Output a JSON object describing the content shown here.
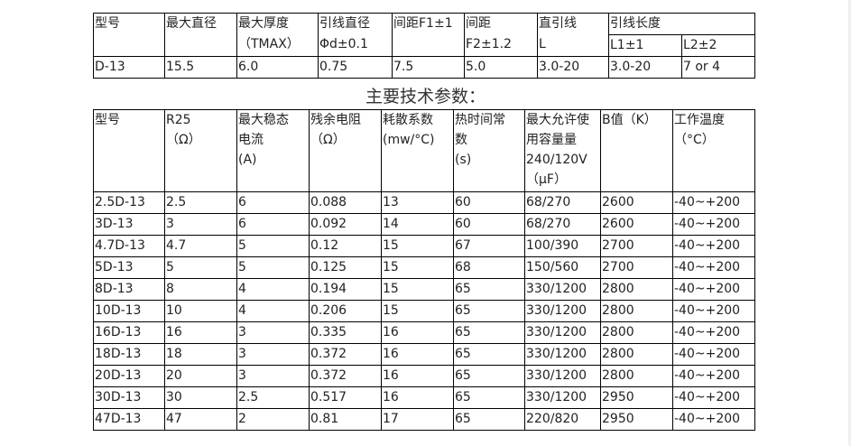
{
  "spec_table": {
    "headers": [
      "型号",
      "最大直径",
      "最大厚度",
      "引线直径",
      "间距F1±1",
      "间距",
      "直引线",
      "引线长度"
    ],
    "subheaders": [
      "",
      "",
      "（TMAX）",
      "Φd±0.1",
      "",
      "F2±1.2",
      "L",
      "L1±1",
      "L2±2"
    ],
    "row": [
      "D-13",
      "15.5",
      "6.0",
      "0.75",
      "7.5",
      "5.0",
      "3.0-20",
      "3.0-20",
      "7 or 4"
    ]
  },
  "section_title": "主要技术参数：",
  "param_table": {
    "headers": [
      [
        "型号"
      ],
      [
        "R25",
        "（Ω）"
      ],
      [
        "最大稳态",
        "电流",
        "(A)"
      ],
      [
        "残余电阻",
        "（Ω）"
      ],
      [
        "耗散系数",
        "(mw/°C)"
      ],
      [
        "热时间常",
        "数",
        "(s)"
      ],
      [
        "最大允许使",
        "用容量量",
        "240/120V",
        "（μF）"
      ],
      [
        "B值（K）"
      ],
      [
        "工作温度",
        "（°C）"
      ]
    ],
    "rows": [
      [
        "2.5D-13",
        "2.5",
        "6",
        "0.088",
        "13",
        "60",
        "68/270",
        "2600",
        "-40~+200"
      ],
      [
        "3D-13",
        "3",
        "6",
        "0.092",
        "14",
        "60",
        "68/270",
        "2600",
        "-40~+200"
      ],
      [
        "4.7D-13",
        "4.7",
        "5",
        "0.12",
        "15",
        "67",
        "100/390",
        "2700",
        "-40~+200"
      ],
      [
        "5D-13",
        "5",
        "5",
        "0.125",
        "15",
        "68",
        "150/560",
        "2700",
        "-40~+200"
      ],
      [
        "8D-13",
        "8",
        "4",
        "0.194",
        "15",
        "65",
        "330/1200",
        "2800",
        "-40~+200"
      ],
      [
        "10D-13",
        "10",
        "4",
        "0.206",
        "15",
        "65",
        "330/1200",
        "2800",
        "-40~+200"
      ],
      [
        "16D-13",
        "16",
        "3",
        "0.335",
        "16",
        "65",
        "330/1200",
        "2800",
        "-40~+200"
      ],
      [
        "18D-13",
        "18",
        "3",
        "0.372",
        "16",
        "65",
        "330/1200",
        "2800",
        "-40~+200"
      ],
      [
        "20D-13",
        "20",
        "3",
        "0.372",
        "16",
        "65",
        "330/1200",
        "2800",
        "-40~+200"
      ],
      [
        "30D-13",
        "30",
        "2.5",
        "0.517",
        "16",
        "65",
        "330/1200",
        "2950",
        "-40~+200"
      ],
      [
        "47D-13",
        "47",
        "2",
        "0.81",
        "17",
        "65",
        "220/820",
        "2950",
        "-40~+200"
      ]
    ]
  }
}
